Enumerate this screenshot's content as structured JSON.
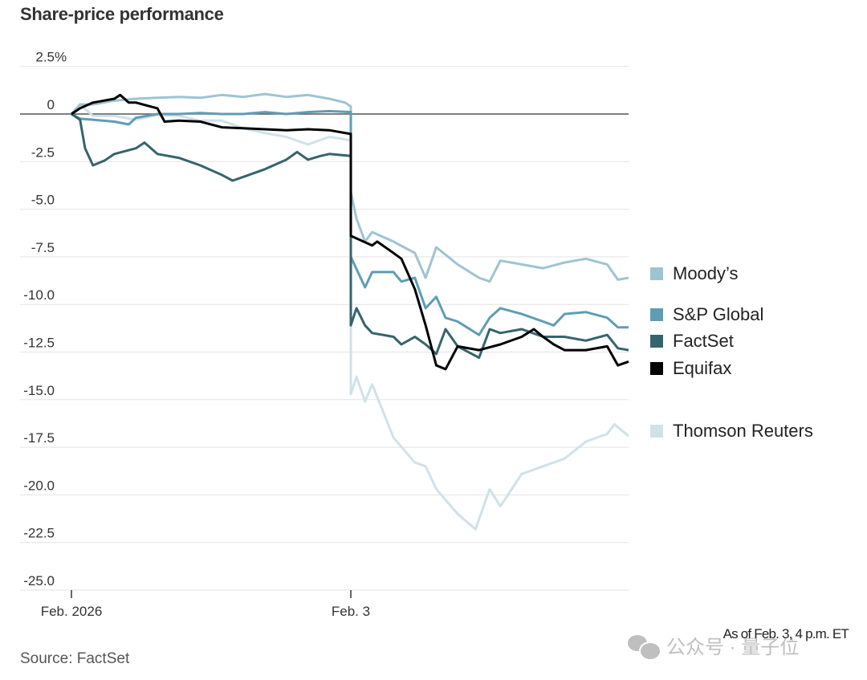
{
  "title": "Share-price performance",
  "note": "As of Feb. 3, 4 p.m. ET",
  "source": "Source: FactSet",
  "watermark": "公众号 · 量子位",
  "chart_data": {
    "type": "line",
    "title": "Share-price performance",
    "xlabel": "",
    "ylabel": "",
    "ylim": [
      -25,
      2.5
    ],
    "y_ticks": [
      {
        "value": 2.5,
        "label": "2.5",
        "suffix": "%"
      },
      {
        "value": 0,
        "label": "0",
        "suffix": ""
      },
      {
        "value": -2.5,
        "label": "-2.5",
        "suffix": ""
      },
      {
        "value": -5,
        "label": "-5.0",
        "suffix": ""
      },
      {
        "value": -7.5,
        "label": "-7.5",
        "suffix": ""
      },
      {
        "value": -10,
        "label": "-10.0",
        "suffix": ""
      },
      {
        "value": -12.5,
        "label": "-12.5",
        "suffix": ""
      },
      {
        "value": -15,
        "label": "-15.0",
        "suffix": ""
      },
      {
        "value": -17.5,
        "label": "-17.5",
        "suffix": ""
      },
      {
        "value": -20,
        "label": "-20.0",
        "suffix": ""
      },
      {
        "value": -22.5,
        "label": "-22.5",
        "suffix": ""
      },
      {
        "value": -25,
        "label": "-25.0",
        "suffix": ""
      }
    ],
    "x_ticks": [
      {
        "x": "2 09:30",
        "label": "Feb. 2026"
      },
      {
        "x": "3 09:30",
        "label": "Feb. 3"
      }
    ],
    "grid": true,
    "legend_placement": "right",
    "series": [
      {
        "name": "Thomson Reuters",
        "color": "#cfe2e9",
        "points": [
          [
            "2 09:30",
            0
          ],
          [
            "2 09:42",
            0.5
          ],
          [
            "2 10:00",
            -0.1
          ],
          [
            "2 10:30",
            -0.1
          ],
          [
            "2 11:00",
            -0.3
          ],
          [
            "2 11:30",
            -0.05
          ],
          [
            "2 12:00",
            -0.1
          ],
          [
            "2 12:30",
            -0.35
          ],
          [
            "2 13:00",
            -0.35
          ],
          [
            "2 13:30",
            -0.75
          ],
          [
            "2 14:00",
            -1.0
          ],
          [
            "2 14:30",
            -1.2
          ],
          [
            "2 15:00",
            -1.6
          ],
          [
            "2 15:30",
            -1.2
          ],
          [
            "2 15:47",
            -1.3
          ],
          [
            "2 16:00",
            -1.4
          ],
          [
            "3 09:30",
            -14.7
          ],
          [
            "3 09:38",
            -13.8
          ],
          [
            "3 09:50",
            -15.1
          ],
          [
            "3 10:00",
            -14.2
          ],
          [
            "3 10:30",
            -17.0
          ],
          [
            "3 11:00",
            -18.3
          ],
          [
            "3 11:15",
            -18.5
          ],
          [
            "3 11:30",
            -19.7
          ],
          [
            "3 12:00",
            -21.0
          ],
          [
            "3 12:25",
            -21.8
          ],
          [
            "3 12:45",
            -19.7
          ],
          [
            "3 13:00",
            -20.6
          ],
          [
            "3 13:30",
            -18.9
          ],
          [
            "3 14:00",
            -18.5
          ],
          [
            "3 14:30",
            -18.1
          ],
          [
            "3 15:00",
            -17.2
          ],
          [
            "3 15:30",
            -16.8
          ],
          [
            "3 15:40",
            -16.3
          ],
          [
            "3 16:00",
            -16.9
          ]
        ]
      },
      {
        "name": "Moody’s",
        "color": "#9fc4d1",
        "points": [
          [
            "2 09:30",
            0
          ],
          [
            "2 09:42",
            0.5
          ],
          [
            "2 10:00",
            0.5
          ],
          [
            "2 10:30",
            0.7
          ],
          [
            "2 11:00",
            0.8
          ],
          [
            "2 11:30",
            0.85
          ],
          [
            "2 12:00",
            0.9
          ],
          [
            "2 12:30",
            0.85
          ],
          [
            "2 13:00",
            1.0
          ],
          [
            "2 13:30",
            0.9
          ],
          [
            "2 14:00",
            1.05
          ],
          [
            "2 14:30",
            0.9
          ],
          [
            "2 15:00",
            1.0
          ],
          [
            "2 15:30",
            0.8
          ],
          [
            "2 15:52",
            0.6
          ],
          [
            "2 16:00",
            0.4
          ],
          [
            "3 09:30",
            -4.1
          ],
          [
            "3 09:38",
            -5.5
          ],
          [
            "3 09:50",
            -6.7
          ],
          [
            "3 10:00",
            -6.2
          ],
          [
            "3 10:30",
            -6.7
          ],
          [
            "3 11:00",
            -7.3
          ],
          [
            "3 11:15",
            -8.6
          ],
          [
            "3 11:30",
            -7.0
          ],
          [
            "3 12:00",
            -7.9
          ],
          [
            "3 12:30",
            -8.6
          ],
          [
            "3 12:45",
            -8.8
          ],
          [
            "3 13:00",
            -7.7
          ],
          [
            "3 13:30",
            -7.9
          ],
          [
            "3 14:00",
            -8.1
          ],
          [
            "3 14:30",
            -7.8
          ],
          [
            "3 15:00",
            -7.6
          ],
          [
            "3 15:30",
            -7.9
          ],
          [
            "3 15:45",
            -8.7
          ],
          [
            "3 16:00",
            -8.6
          ]
        ]
      },
      {
        "name": "S&P Global",
        "color": "#5f9db5",
        "points": [
          [
            "2 09:30",
            0
          ],
          [
            "2 09:42",
            -0.25
          ],
          [
            "2 10:00",
            -0.3
          ],
          [
            "2 10:30",
            -0.4
          ],
          [
            "2 10:50",
            -0.55
          ],
          [
            "2 11:00",
            -0.2
          ],
          [
            "2 11:30",
            0
          ],
          [
            "2 12:00",
            0
          ],
          [
            "2 12:30",
            0.05
          ],
          [
            "2 13:00",
            0
          ],
          [
            "2 13:30",
            0
          ],
          [
            "2 14:00",
            0.1
          ],
          [
            "2 14:30",
            0
          ],
          [
            "2 15:00",
            0.1
          ],
          [
            "2 15:30",
            0.15
          ],
          [
            "2 16:00",
            0.1
          ],
          [
            "3 09:30",
            -7.5
          ],
          [
            "3 09:50",
            -9.1
          ],
          [
            "3 10:00",
            -8.3
          ],
          [
            "3 10:30",
            -8.3
          ],
          [
            "3 10:41",
            -8.8
          ],
          [
            "3 11:00",
            -8.6
          ],
          [
            "3 11:15",
            -10.2
          ],
          [
            "3 11:30",
            -9.6
          ],
          [
            "3 11:43",
            -10.7
          ],
          [
            "3 12:00",
            -10.9
          ],
          [
            "3 12:30",
            -11.6
          ],
          [
            "3 12:45",
            -10.7
          ],
          [
            "3 13:00",
            -10.2
          ],
          [
            "3 13:30",
            -10.5
          ],
          [
            "3 14:00",
            -10.9
          ],
          [
            "3 14:15",
            -11.1
          ],
          [
            "3 14:30",
            -10.5
          ],
          [
            "3 15:00",
            -10.4
          ],
          [
            "3 15:30",
            -10.7
          ],
          [
            "3 15:45",
            -11.2
          ],
          [
            "3 16:00",
            -11.2
          ]
        ]
      },
      {
        "name": "FactSet",
        "color": "#36646d",
        "points": [
          [
            "2 09:30",
            0
          ],
          [
            "2 09:42",
            -0.3
          ],
          [
            "2 09:49",
            -1.8
          ],
          [
            "2 10:00",
            -2.7
          ],
          [
            "2 10:16",
            -2.45
          ],
          [
            "2 10:30",
            -2.1
          ],
          [
            "2 11:00",
            -1.8
          ],
          [
            "2 11:12",
            -1.5
          ],
          [
            "2 11:30",
            -2.1
          ],
          [
            "2 12:00",
            -2.3
          ],
          [
            "2 12:30",
            -2.7
          ],
          [
            "2 13:00",
            -3.2
          ],
          [
            "2 13:15",
            -3.5
          ],
          [
            "2 13:30",
            -3.3
          ],
          [
            "2 14:00",
            -2.9
          ],
          [
            "2 14:30",
            -2.4
          ],
          [
            "2 14:45",
            -2.0
          ],
          [
            "2 15:00",
            -2.4
          ],
          [
            "2 15:18",
            -2.2
          ],
          [
            "2 15:30",
            -2.1
          ],
          [
            "2 16:00",
            -2.2
          ],
          [
            "3 09:30",
            -11.1
          ],
          [
            "3 09:38",
            -10.2
          ],
          [
            "3 09:50",
            -11.1
          ],
          [
            "3 10:00",
            -11.5
          ],
          [
            "3 10:30",
            -11.7
          ],
          [
            "3 10:41",
            -12.1
          ],
          [
            "3 11:00",
            -11.7
          ],
          [
            "3 11:15",
            -12.1
          ],
          [
            "3 11:30",
            -12.6
          ],
          [
            "3 11:43",
            -11.3
          ],
          [
            "3 12:00",
            -12.2
          ],
          [
            "3 12:30",
            -12.8
          ],
          [
            "3 12:45",
            -11.3
          ],
          [
            "3 13:00",
            -11.5
          ],
          [
            "3 13:30",
            -11.3
          ],
          [
            "3 14:00",
            -11.7
          ],
          [
            "3 14:30",
            -11.7
          ],
          [
            "3 15:00",
            -11.9
          ],
          [
            "3 15:30",
            -11.6
          ],
          [
            "3 15:45",
            -12.3
          ],
          [
            "3 16:00",
            -12.4
          ]
        ]
      },
      {
        "name": "Equifax",
        "color": "#000000",
        "points": [
          [
            "2 09:30",
            0
          ],
          [
            "2 09:42",
            0.3
          ],
          [
            "2 10:00",
            0.6
          ],
          [
            "2 10:30",
            0.8
          ],
          [
            "2 10:38",
            1.0
          ],
          [
            "2 10:50",
            0.6
          ],
          [
            "2 11:00",
            0.6
          ],
          [
            "2 11:30",
            0.3
          ],
          [
            "2 11:40",
            -0.4
          ],
          [
            "2 12:00",
            -0.35
          ],
          [
            "2 12:30",
            -0.4
          ],
          [
            "2 13:00",
            -0.7
          ],
          [
            "2 13:30",
            -0.75
          ],
          [
            "2 14:00",
            -0.8
          ],
          [
            "2 14:30",
            -0.85
          ],
          [
            "2 15:00",
            -0.8
          ],
          [
            "2 15:30",
            -0.85
          ],
          [
            "2 16:00",
            -1.05
          ],
          [
            "3 09:30",
            -6.4
          ],
          [
            "3 10:00",
            -6.9
          ],
          [
            "3 10:07",
            -6.7
          ],
          [
            "3 10:30",
            -7.3
          ],
          [
            "3 10:41",
            -7.6
          ],
          [
            "3 11:00",
            -9.2
          ],
          [
            "3 11:15",
            -11.1
          ],
          [
            "3 11:30",
            -13.2
          ],
          [
            "3 11:43",
            -13.4
          ],
          [
            "3 12:00",
            -12.2
          ],
          [
            "3 12:30",
            -12.4
          ],
          [
            "3 13:00",
            -12.1
          ],
          [
            "3 13:30",
            -11.7
          ],
          [
            "3 13:47",
            -11.3
          ],
          [
            "3 14:00",
            -11.7
          ],
          [
            "3 14:15",
            -12.1
          ],
          [
            "3 14:30",
            -12.4
          ],
          [
            "3 15:00",
            -12.4
          ],
          [
            "3 15:30",
            -12.2
          ],
          [
            "3 15:45",
            -13.2
          ],
          [
            "3 16:00",
            -13.0
          ]
        ]
      }
    ],
    "legend": [
      "Moody’s",
      "S&P Global",
      "FactSet",
      "Equifax",
      "Thomson Reuters"
    ]
  }
}
